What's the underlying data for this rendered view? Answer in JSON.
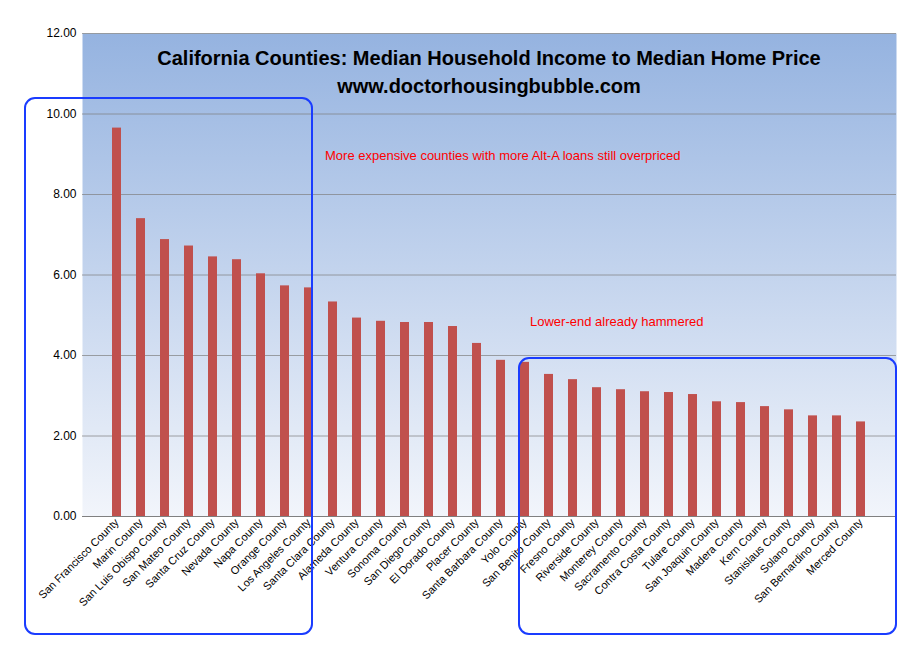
{
  "chart_data": {
    "type": "bar",
    "title": "California Counties:  Median Household Income to Median Home Price",
    "subtitle": "www.doctorhousingbubble.com",
    "annotations": [
      "More expensive counties with more Alt-A loans still overpriced",
      "Lower-end already hammered"
    ],
    "categories": [
      "San Francisco County",
      "Marin County",
      "San Luis Obispo County",
      "San Mateo County",
      "Santa Cruz County",
      "Nevada County",
      "Napa County",
      "Orange County",
      "Los Angeles County",
      "Santa Clara County",
      "Alameda County",
      "Ventura County",
      "Sonoma County",
      "San Diego County",
      "El Dorado County",
      "Placer County",
      "Santa Barbara County",
      "Yolo County",
      "San Benito County",
      "Fresno County",
      "Riverside County",
      "Monterey County",
      "Sacramento County",
      "Contra Costa County",
      "Tulare County",
      "San Joaquin County",
      "Madera County",
      "Kern County",
      "Stanislaus County",
      "Solano County",
      "San Bernardino County",
      "Merced County"
    ],
    "values": [
      9.65,
      7.4,
      6.88,
      6.72,
      6.45,
      6.38,
      6.03,
      5.73,
      5.68,
      5.33,
      4.93,
      4.85,
      4.82,
      4.82,
      4.72,
      4.3,
      3.88,
      3.83,
      3.53,
      3.4,
      3.2,
      3.15,
      3.1,
      3.08,
      3.03,
      2.85,
      2.83,
      2.73,
      2.65,
      2.5,
      2.5,
      2.35
    ],
    "color": "#c0504d",
    "ylim": [
      0,
      12
    ],
    "yticks": [
      {
        "value": 0,
        "label": "0.00"
      },
      {
        "value": 2,
        "label": "2.00"
      },
      {
        "value": 4,
        "label": "4.00"
      },
      {
        "value": 6,
        "label": "6.00"
      },
      {
        "value": 8,
        "label": "8.00"
      },
      {
        "value": 10,
        "label": "10.00"
      },
      {
        "value": 12,
        "label": "12.00"
      }
    ],
    "grid": true
  }
}
